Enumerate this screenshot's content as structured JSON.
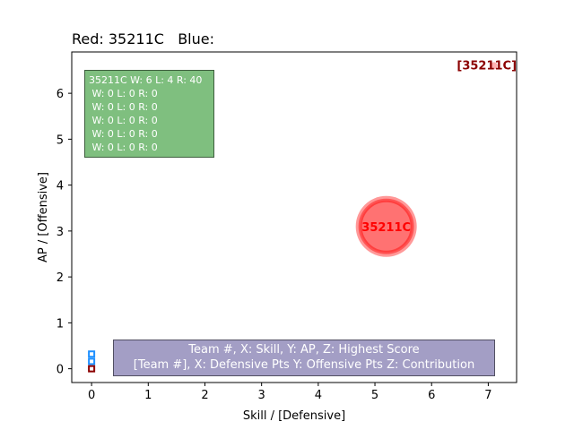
{
  "title": "Red: 35211C   Blue:",
  "stats_box": {
    "lines": [
      "35211C W: 6 L: 4 R: 40",
      " W: 0 L: 0 R: 0",
      " W: 0 L: 0 R: 0",
      " W: 0 L: 0 R: 0",
      " W: 0 L: 0 R: 0",
      " W: 0 L: 0 R: 0"
    ]
  },
  "legend_box": {
    "line1": "Team #, X: Skill, Y: AP, Z: Highest Score",
    "line2": "[Team #], X: Defensive Pts Y: Offensive Pts Z: Contribution"
  },
  "colors": {
    "red_team": "#ff0000",
    "dark_red_label": "#8b0000",
    "stats_box": "#008000",
    "legend_box": "#483d8b"
  },
  "chart_data": {
    "type": "scatter",
    "xlabel": "Skill / [Defensive]",
    "ylabel": "AP / [Offensive]",
    "xlim": [
      -0.35,
      7.5
    ],
    "ylim": [
      -0.3,
      6.9
    ],
    "xticks": [
      "0",
      "1",
      "2",
      "3",
      "4",
      "5",
      "6",
      "7"
    ],
    "yticks": [
      "0",
      "1",
      "2",
      "3",
      "4",
      "5",
      "6"
    ],
    "grid": false,
    "points": [
      {
        "label": "35211C",
        "x": 5.2,
        "y": 3.1,
        "style": "team"
      },
      {
        "label": "[35211C]",
        "x": 7.1,
        "y": 6.6,
        "style": "contribution"
      }
    ]
  }
}
